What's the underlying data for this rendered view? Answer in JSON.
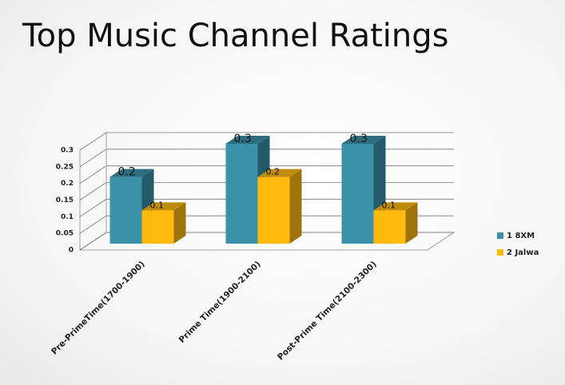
{
  "chart_data": {
    "type": "bar3d",
    "title": "Top Music Channel Ratings",
    "categories": [
      "Pre-PrimeTime(1700-1900)",
      "Prime Time(1900-2100)",
      "Post-Prime Time(2100-2300)"
    ],
    "series": [
      {
        "name": "1 8XM",
        "color": "#3a91a9",
        "values": [
          0.2,
          0.3,
          0.3
        ]
      },
      {
        "name": "2 Jalwa",
        "color": "#ffb90f",
        "values": [
          0.1,
          0.2,
          0.1
        ]
      }
    ],
    "ylim": [
      0,
      0.3
    ],
    "yticks": [
      0,
      0.05,
      0.1,
      0.15,
      0.2,
      0.25,
      0.3
    ],
    "grid": true,
    "legend": "right"
  }
}
